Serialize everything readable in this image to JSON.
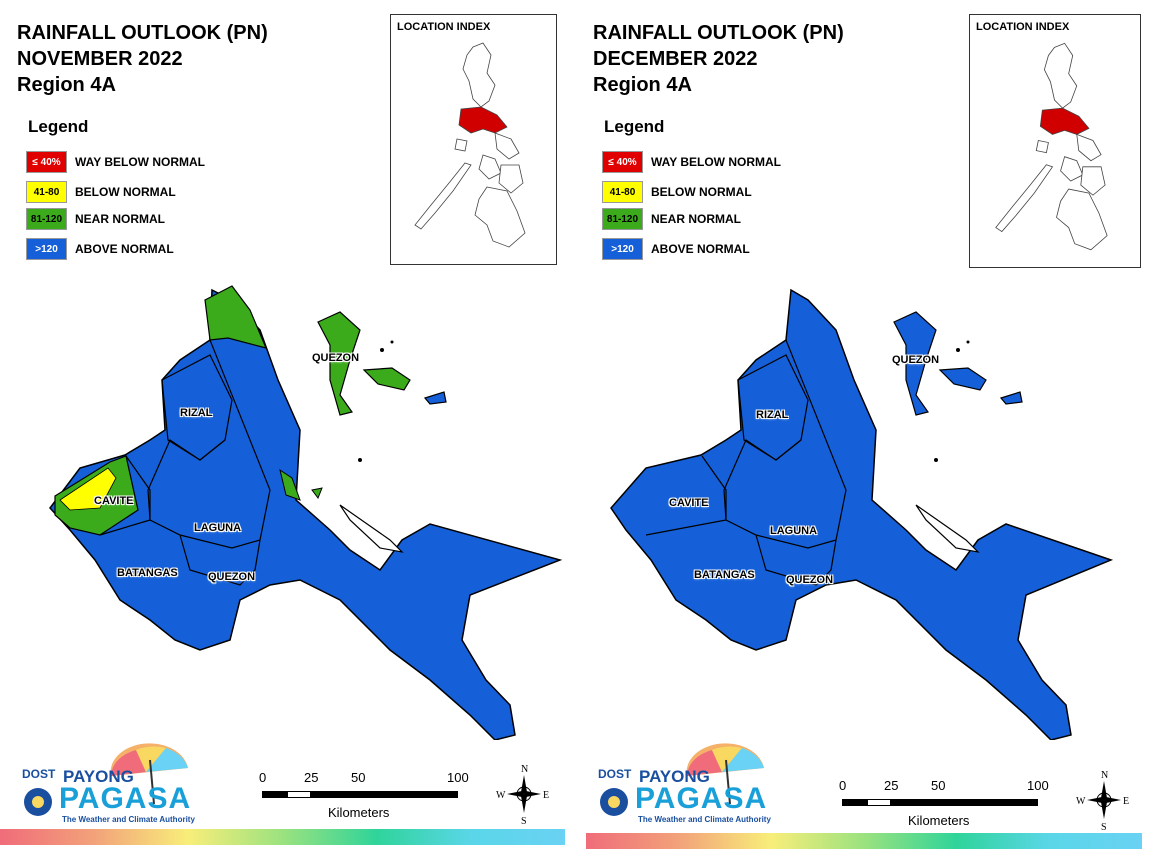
{
  "panels": [
    {
      "title_line1": "RAINFALL OUTLOOK (PN)",
      "title_line2": "NOVEMBER 2022",
      "title_line3": "Region 4A",
      "legend": {
        "title": "Legend",
        "items": [
          {
            "range": "≤ 40%",
            "label": "WAY BELOW NORMAL",
            "color": "#e00000",
            "text_color": "#ffffff"
          },
          {
            "range": "41-80",
            "label": "BELOW NORMAL",
            "color": "#ffff00",
            "text_color": "#000000"
          },
          {
            "range": "81-120",
            "label": "NEAR NORMAL",
            "color": "#3bab1c",
            "text_color": "#000000"
          },
          {
            "range": ">120",
            "label": "ABOVE NORMAL",
            "color": "#1560d8",
            "text_color": "#ffffff"
          }
        ]
      },
      "location_index": {
        "title": "LOCATION INDEX"
      },
      "provinces": {
        "quezon_north": "QUEZON",
        "rizal": "RIZAL",
        "cavite": "CAVITE",
        "laguna": "LAGUNA",
        "batangas": "BATANGAS",
        "quezon_south": "QUEZON"
      },
      "scale": {
        "ticks": [
          "0",
          "25",
          "50",
          "100"
        ],
        "unit": "Kilometers"
      },
      "compass": {
        "n": "N",
        "s": "S",
        "e": "E",
        "w": "W"
      },
      "logo": {
        "dost": "DOST",
        "payong": "PAYONG",
        "pagasa": "PAGASA",
        "tagline": "The Weather and Climate Authority"
      },
      "region_categories": {
        "polillo": "NEAR NORMAL",
        "north_quezon_tip": "NEAR NORMAL",
        "cavite_west": "NEAR NORMAL",
        "cavite_coast": "BELOW NORMAL",
        "rest": "ABOVE NORMAL"
      }
    },
    {
      "title_line1": "RAINFALL OUTLOOK (PN)",
      "title_line2": "DECEMBER 2022",
      "title_line3": "Region 4A",
      "legend": {
        "title": "Legend",
        "items": [
          {
            "range": "≤ 40%",
            "label": "WAY BELOW NORMAL",
            "color": "#e00000",
            "text_color": "#ffffff"
          },
          {
            "range": "41-80",
            "label": "BELOW NORMAL",
            "color": "#ffff00",
            "text_color": "#000000"
          },
          {
            "range": "81-120",
            "label": "NEAR NORMAL",
            "color": "#3bab1c",
            "text_color": "#000000"
          },
          {
            "range": ">120",
            "label": "ABOVE NORMAL",
            "color": "#1560d8",
            "text_color": "#ffffff"
          }
        ]
      },
      "location_index": {
        "title": "LOCATION INDEX"
      },
      "provinces": {
        "quezon_north": "QUEZON",
        "rizal": "RIZAL",
        "cavite": "CAVITE",
        "laguna": "LAGUNA",
        "batangas": "BATANGAS",
        "quezon_south": "QUEZON"
      },
      "scale": {
        "ticks": [
          "0",
          "25",
          "50",
          "100"
        ],
        "unit": "Kilometers"
      },
      "compass": {
        "n": "N",
        "s": "S",
        "e": "E",
        "w": "W"
      },
      "logo": {
        "dost": "DOST",
        "payong": "PAYONG",
        "pagasa": "PAGASA",
        "tagline": "The Weather and Climate Authority"
      },
      "region_categories": {
        "all": "ABOVE NORMAL"
      }
    }
  ]
}
